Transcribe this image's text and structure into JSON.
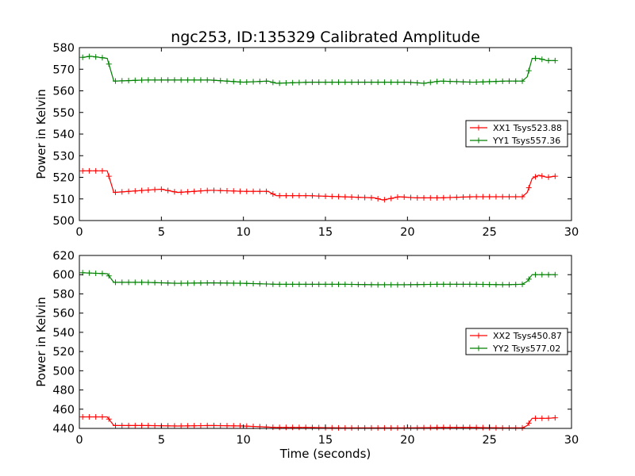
{
  "chart_data": [
    {
      "type": "line",
      "title": "ngc253, ID:135329 Calibrated Amplitude",
      "xlabel": "",
      "ylabel": "Power in Kelvin",
      "xlim": [
        0,
        30
      ],
      "ylim": [
        500,
        580
      ],
      "xticks": [
        0,
        5,
        10,
        15,
        20,
        25,
        30
      ],
      "yticks": [
        500,
        510,
        520,
        530,
        540,
        550,
        560,
        570,
        580
      ],
      "grid": false,
      "legend": "center-right",
      "series": [
        {
          "name": "XX1 Tsys523.88",
          "color": "#ff0000",
          "x": [
            0.2,
            1.7,
            2.1,
            4.0,
            5.0,
            6.0,
            8.0,
            10.0,
            11.5,
            12.0,
            14.0,
            16.0,
            18.0,
            18.5,
            19.5,
            20.5,
            22.0,
            24.0,
            26.0,
            27.0,
            27.3,
            27.6,
            28.0,
            28.5,
            29.0
          ],
          "y": [
            523,
            523,
            513,
            514,
            514.5,
            513,
            514,
            513.5,
            513.5,
            511.5,
            511.5,
            511,
            510.5,
            509.5,
            511,
            510.5,
            510.5,
            511,
            511,
            511,
            513,
            519.5,
            521,
            520,
            520.5
          ]
        },
        {
          "name": "YY1 Tsys557.36",
          "color": "#008000",
          "x": [
            0.2,
            0.7,
            1.7,
            2.1,
            4.0,
            6.0,
            8.0,
            10.0,
            11.5,
            12.0,
            14.0,
            16.0,
            18.0,
            20.0,
            21.0,
            22.0,
            24.0,
            26.0,
            27.0,
            27.3,
            27.6,
            28.0,
            28.5,
            29.0
          ],
          "y": [
            575.5,
            576,
            575,
            564.5,
            565,
            565,
            565,
            564,
            564.5,
            563.5,
            564,
            564,
            564,
            564,
            563.5,
            564.5,
            564,
            564.5,
            564.5,
            566.5,
            575,
            575,
            574,
            574
          ]
        }
      ]
    },
    {
      "type": "line",
      "title": "",
      "xlabel": "Time (seconds)",
      "ylabel": "Power in Kelvin",
      "xlim": [
        0,
        30
      ],
      "ylim": [
        440,
        620
      ],
      "xticks": [
        0,
        5,
        10,
        15,
        20,
        25,
        30
      ],
      "yticks": [
        440,
        460,
        480,
        500,
        520,
        540,
        560,
        580,
        600,
        620
      ],
      "grid": false,
      "legend": "center-right",
      "series": [
        {
          "name": "XX2 Tsys450.87",
          "color": "#ff0000",
          "x": [
            0.2,
            1.7,
            2.1,
            4.0,
            6.0,
            8.0,
            10.0,
            12.0,
            14.0,
            16.0,
            18.0,
            20.0,
            22.0,
            24.0,
            26.0,
            27.0,
            27.3,
            27.6,
            28.0,
            28.5,
            29.0
          ],
          "y": [
            452,
            452,
            443,
            443,
            442.5,
            443,
            442.5,
            441,
            441,
            440.5,
            440.5,
            440.5,
            441,
            441,
            440.5,
            440.5,
            443,
            450.5,
            450.5,
            450.5,
            451
          ]
        },
        {
          "name": "YY2 Tsys577.02",
          "color": "#008000",
          "x": [
            0.2,
            1.7,
            2.1,
            4.0,
            6.0,
            8.0,
            10.0,
            12.0,
            14.0,
            16.0,
            18.0,
            20.0,
            22.0,
            24.0,
            26.0,
            27.0,
            27.3,
            27.6,
            28.0,
            28.5,
            29.0
          ],
          "y": [
            602,
            601,
            592,
            592,
            591,
            591.5,
            591,
            590,
            590,
            590,
            589.5,
            589.5,
            590,
            590,
            589.5,
            590,
            593,
            600,
            600,
            600,
            600
          ]
        }
      ]
    }
  ]
}
